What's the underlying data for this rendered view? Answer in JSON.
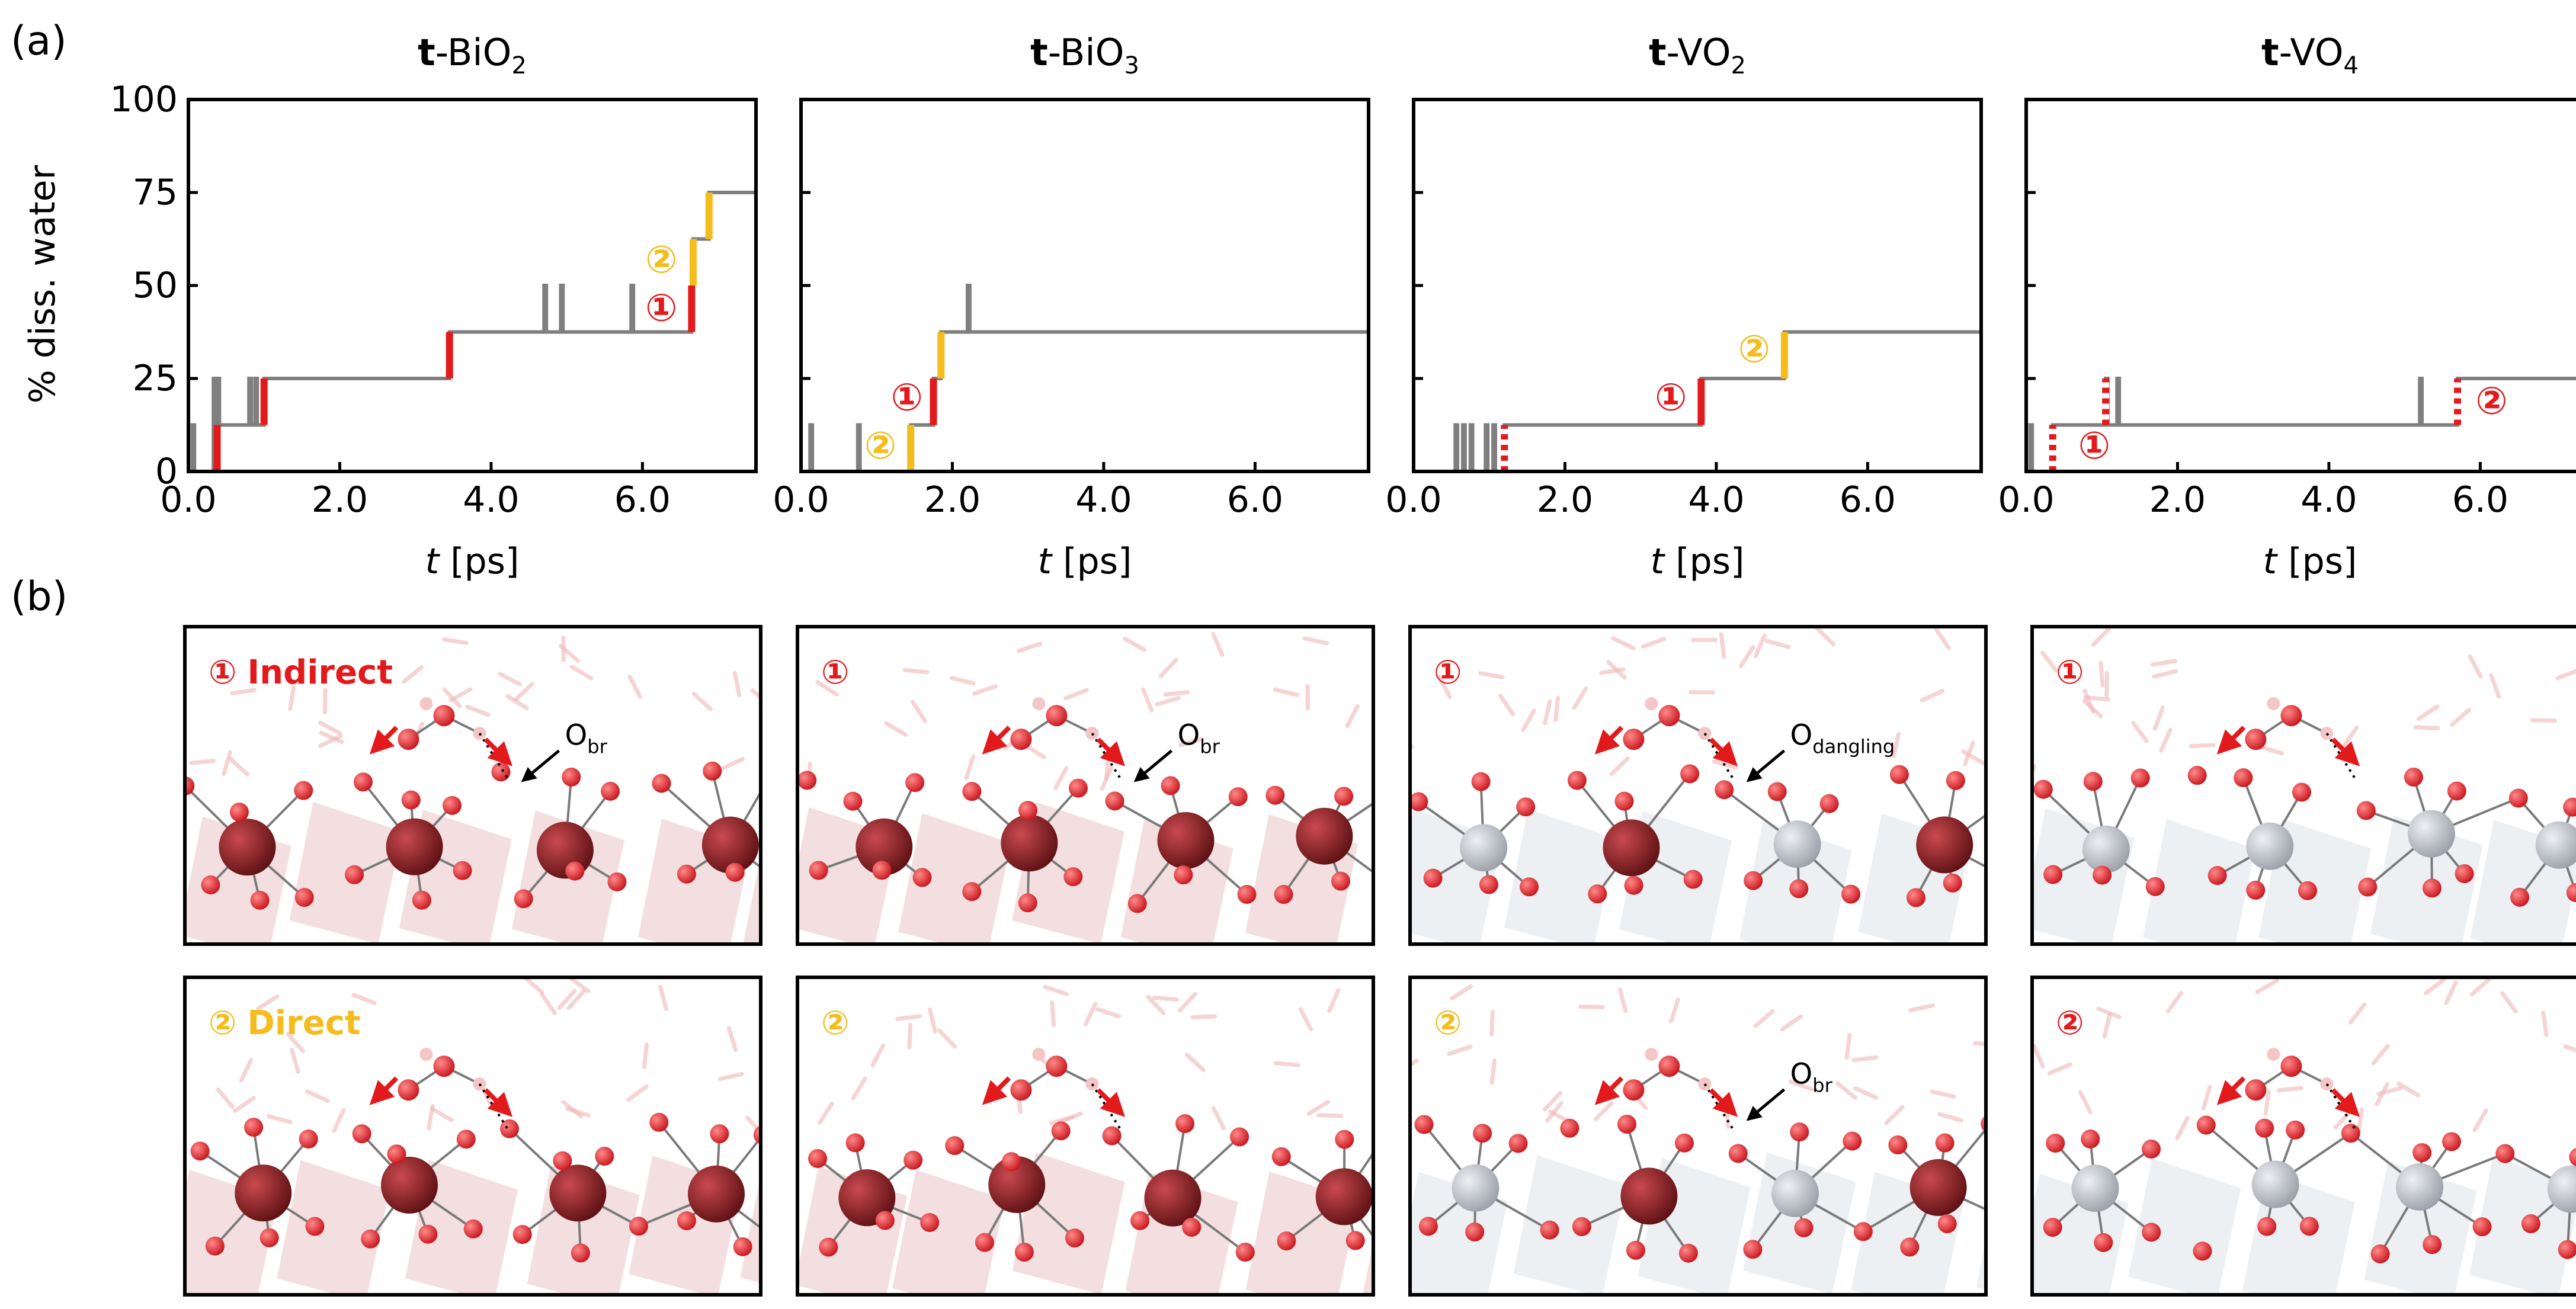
{
  "panel_labels": {
    "a": "(a)",
    "b": "(b)"
  },
  "colors": {
    "gray": "#7f7f7f",
    "indirect": "#e31a1c",
    "direct": "#f4bc1c",
    "bi": "#8e1f24",
    "v": "#b7bcc4",
    "o": "#e8333b",
    "h": "#f4c6c6"
  },
  "chart_data": [
    {
      "type": "line",
      "title_bold": "t",
      "title_main": "-BiO",
      "title_sub": "2",
      "xlabel_italic": "t",
      "xlabel_rest": " [ps]",
      "ylabel": "% diss. water",
      "xlim": [
        0,
        7.5
      ],
      "ylim": [
        0,
        100
      ],
      "xticks": [
        "0.0",
        "2.0",
        "4.0",
        "6.0"
      ],
      "yticks": [
        "0",
        "25",
        "50",
        "75",
        "100"
      ],
      "series": [
        {
          "values": [
            [
              0,
              0
            ],
            [
              0.05,
              0
            ],
            [
              0.05,
              12.5
            ],
            [
              0.08,
              12.5
            ],
            [
              0.08,
              0
            ],
            [
              0.33,
              0
            ],
            [
              0.33,
              25
            ],
            [
              0.36,
              25
            ],
            [
              0.36,
              12.5
            ],
            [
              0.38,
              12.5
            ],
            [
              0.38,
              25
            ],
            [
              0.41,
              25
            ],
            [
              0.41,
              12.5
            ],
            [
              0.8,
              12.5
            ],
            [
              0.8,
              25
            ],
            [
              0.83,
              25
            ],
            [
              0.83,
              12.5
            ],
            [
              0.88,
              12.5
            ],
            [
              0.88,
              25
            ],
            [
              0.91,
              25
            ],
            [
              0.91,
              12.5
            ],
            [
              1.0,
              12.5
            ],
            [
              1.0,
              25
            ],
            [
              3.45,
              25
            ],
            [
              3.45,
              37.5
            ],
            [
              4.7,
              37.5
            ],
            [
              4.7,
              50
            ],
            [
              4.73,
              50
            ],
            [
              4.73,
              37.5
            ],
            [
              4.92,
              37.5
            ],
            [
              4.92,
              50
            ],
            [
              4.95,
              50
            ],
            [
              4.95,
              37.5
            ],
            [
              5.85,
              37.5
            ],
            [
              5.85,
              50
            ],
            [
              5.88,
              50
            ],
            [
              5.88,
              37.5
            ],
            [
              6.65,
              37.5
            ],
            [
              6.65,
              50
            ],
            [
              6.67,
              50
            ],
            [
              6.67,
              62.5
            ],
            [
              6.88,
              62.5
            ],
            [
              6.88,
              75
            ],
            [
              7.5,
              75
            ]
          ]
        }
      ],
      "events": [
        {
          "t": 0.38,
          "y0": 0,
          "y1": 12.5,
          "kind": "indirect"
        },
        {
          "t": 1.0,
          "y0": 12.5,
          "y1": 25,
          "kind": "indirect"
        },
        {
          "t": 3.45,
          "y0": 25,
          "y1": 37.5,
          "kind": "indirect"
        },
        {
          "t": 6.65,
          "y0": 37.5,
          "y1": 50,
          "kind": "indirect"
        },
        {
          "t": 6.67,
          "y0": 50,
          "y1": 62.5,
          "kind": "direct"
        },
        {
          "t": 6.88,
          "y0": 62.5,
          "y1": 75,
          "kind": "direct"
        }
      ],
      "markers": [
        {
          "label": "①",
          "t": 6.25,
          "y": 44,
          "kind": "indirect"
        },
        {
          "label": "②",
          "t": 6.25,
          "y": 57,
          "kind": "direct"
        }
      ]
    },
    {
      "type": "line",
      "title_bold": "t",
      "title_main": "-BiO",
      "title_sub": "3",
      "xlabel_italic": "t",
      "xlabel_rest": " [ps]",
      "ylabel": "",
      "xlim": [
        0,
        7.5
      ],
      "ylim": [
        0,
        100
      ],
      "xticks": [
        "0.0",
        "2.0",
        "4.0",
        "6.0"
      ],
      "yticks": [],
      "series": [
        {
          "values": [
            [
              0,
              0
            ],
            [
              0.12,
              0
            ],
            [
              0.12,
              12.5
            ],
            [
              0.15,
              12.5
            ],
            [
              0.15,
              0
            ],
            [
              0.75,
              0
            ],
            [
              0.75,
              12.5
            ],
            [
              0.78,
              12.5
            ],
            [
              0.78,
              0
            ],
            [
              1.45,
              0
            ],
            [
              1.45,
              12.5
            ],
            [
              1.75,
              12.5
            ],
            [
              1.75,
              25
            ],
            [
              1.85,
              25
            ],
            [
              1.85,
              37.5
            ],
            [
              2.2,
              37.5
            ],
            [
              2.2,
              50
            ],
            [
              2.23,
              50
            ],
            [
              2.23,
              37.5
            ],
            [
              7.5,
              37.5
            ]
          ]
        }
      ],
      "events": [
        {
          "t": 1.45,
          "y0": 0,
          "y1": 12.5,
          "kind": "direct"
        },
        {
          "t": 1.75,
          "y0": 12.5,
          "y1": 25,
          "kind": "indirect"
        },
        {
          "t": 1.85,
          "y0": 25,
          "y1": 37.5,
          "kind": "direct"
        }
      ],
      "markers": [
        {
          "label": "①",
          "t": 1.4,
          "y": 20,
          "kind": "indirect"
        },
        {
          "label": "②",
          "t": 1.05,
          "y": 7,
          "kind": "direct"
        }
      ]
    },
    {
      "type": "line",
      "title_bold": "t",
      "title_main": "-VO",
      "title_sub": "2",
      "xlabel_italic": "t",
      "xlabel_rest": " [ps]",
      "ylabel": "",
      "xlim": [
        0,
        7.5
      ],
      "ylim": [
        0,
        100
      ],
      "xticks": [
        "0.0",
        "2.0",
        "4.0",
        "6.0"
      ],
      "yticks": [],
      "series": [
        {
          "values": [
            [
              0,
              0
            ],
            [
              0.55,
              0
            ],
            [
              0.55,
              12.5
            ],
            [
              0.58,
              12.5
            ],
            [
              0.58,
              0
            ],
            [
              0.65,
              0
            ],
            [
              0.65,
              12.5
            ],
            [
              0.68,
              12.5
            ],
            [
              0.68,
              0
            ],
            [
              0.75,
              0
            ],
            [
              0.75,
              12.5
            ],
            [
              0.78,
              12.5
            ],
            [
              0.78,
              0
            ],
            [
              0.95,
              0
            ],
            [
              0.95,
              12.5
            ],
            [
              0.98,
              12.5
            ],
            [
              0.98,
              0
            ],
            [
              1.05,
              0
            ],
            [
              1.05,
              12.5
            ],
            [
              1.08,
              12.5
            ],
            [
              1.08,
              0
            ],
            [
              1.2,
              0
            ],
            [
              1.2,
              12.5
            ],
            [
              3.8,
              12.5
            ],
            [
              3.8,
              25
            ],
            [
              4.9,
              25
            ],
            [
              4.9,
              37.5
            ],
            [
              7.5,
              37.5
            ]
          ]
        }
      ],
      "events": [
        {
          "t": 1.2,
          "y0": 0,
          "y1": 12.5,
          "kind": "indirect-dotted"
        },
        {
          "t": 3.8,
          "y0": 12.5,
          "y1": 25,
          "kind": "indirect"
        },
        {
          "t": 4.9,
          "y0": 25,
          "y1": 37.5,
          "kind": "direct"
        }
      ],
      "markers": [
        {
          "label": "①",
          "t": 3.4,
          "y": 20,
          "kind": "indirect"
        },
        {
          "label": "②",
          "t": 4.5,
          "y": 33,
          "kind": "direct"
        }
      ]
    },
    {
      "type": "line",
      "title_bold": "t",
      "title_main": "-VO",
      "title_sub": "4",
      "xlabel_italic": "t",
      "xlabel_rest": " [ps]",
      "ylabel": "",
      "xlim": [
        0,
        7.5
      ],
      "ylim": [
        0,
        100
      ],
      "xticks": [
        "0.0",
        "2.0",
        "4.0",
        "6.0"
      ],
      "yticks": [],
      "series": [
        {
          "values": [
            [
              0,
              0
            ],
            [
              0.05,
              0
            ],
            [
              0.05,
              12.5
            ],
            [
              0.08,
              12.5
            ],
            [
              0.08,
              0
            ],
            [
              0.35,
              0
            ],
            [
              0.35,
              12.5
            ],
            [
              1.05,
              12.5
            ],
            [
              1.05,
              25
            ],
            [
              1.08,
              25
            ],
            [
              1.08,
              12.5
            ],
            [
              1.2,
              12.5
            ],
            [
              1.2,
              25
            ],
            [
              1.23,
              25
            ],
            [
              1.23,
              12.5
            ],
            [
              5.2,
              12.5
            ],
            [
              5.2,
              25
            ],
            [
              5.23,
              25
            ],
            [
              5.23,
              12.5
            ],
            [
              5.7,
              12.5
            ],
            [
              5.7,
              25
            ],
            [
              7.5,
              25
            ]
          ]
        }
      ],
      "events": [
        {
          "t": 0.35,
          "y0": 0,
          "y1": 12.5,
          "kind": "indirect-dotted"
        },
        {
          "t": 1.05,
          "y0": 12.5,
          "y1": 25,
          "kind": "indirect-dotted"
        },
        {
          "t": 5.7,
          "y0": 12.5,
          "y1": 25,
          "kind": "indirect-dotted"
        }
      ],
      "markers": [
        {
          "label": "①",
          "t": 0.9,
          "y": 7,
          "kind": "indirect"
        },
        {
          "label": "②",
          "t": 6.15,
          "y": 19,
          "kind": "indirect"
        }
      ]
    }
  ],
  "snapshots": {
    "row1": [
      {
        "marker": "①",
        "kind": "indirect",
        "mech": "Indirect",
        "callout": "O",
        "callout_sub": "br"
      },
      {
        "marker": "①",
        "kind": "indirect",
        "mech": "",
        "callout": "O",
        "callout_sub": "br"
      },
      {
        "marker": "①",
        "kind": "indirect",
        "mech": "",
        "callout": "O",
        "callout_sub": "dangling"
      },
      {
        "marker": "①",
        "kind": "indirect",
        "mech": "",
        "callout": "",
        "callout_sub": ""
      }
    ],
    "row2": [
      {
        "marker": "②",
        "kind": "direct",
        "mech": "Direct",
        "callout": "",
        "callout_sub": ""
      },
      {
        "marker": "②",
        "kind": "direct",
        "mech": "",
        "callout": "",
        "callout_sub": ""
      },
      {
        "marker": "②",
        "kind": "direct",
        "mech": "",
        "callout": "O",
        "callout_sub": "br"
      },
      {
        "marker": "②",
        "kind": "indirect",
        "mech": "",
        "callout": "",
        "callout_sub": ""
      }
    ]
  }
}
